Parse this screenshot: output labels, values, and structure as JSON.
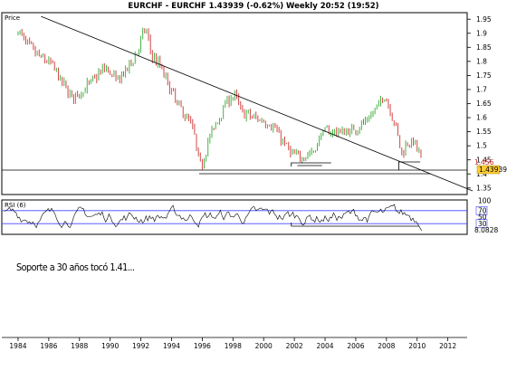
{
  "chart_data": {
    "type": "candlestick",
    "title": "EURCHF - EURCHF    1.43939 (-0.62%)    Weekly  20:52 (19:52)",
    "price_panel": {
      "label": "Price",
      "y_ticks": [
        "1.95",
        "1.9",
        "1.85",
        "1.8",
        "1.75",
        "1.7",
        "1.65",
        "1.6",
        "1.55",
        "1.5",
        "1.45",
        "1.4",
        "1.35"
      ],
      "ylim": [
        1.33,
        1.97
      ],
      "last_price_label": "1.43939",
      "previous_label": "1.456",
      "series": [
        {
          "x": 1984.0,
          "y": 1.91
        },
        {
          "x": 1984.6,
          "y": 1.86
        },
        {
          "x": 1985.3,
          "y": 1.82
        },
        {
          "x": 1986.2,
          "y": 1.79
        },
        {
          "x": 1986.9,
          "y": 1.72
        },
        {
          "x": 1987.6,
          "y": 1.67
        },
        {
          "x": 1988.3,
          "y": 1.7
        },
        {
          "x": 1989.0,
          "y": 1.74
        },
        {
          "x": 1989.7,
          "y": 1.78
        },
        {
          "x": 1990.4,
          "y": 1.73
        },
        {
          "x": 1991.1,
          "y": 1.77
        },
        {
          "x": 1991.8,
          "y": 1.84
        },
        {
          "x": 1992.3,
          "y": 1.92
        },
        {
          "x": 1992.7,
          "y": 1.82
        },
        {
          "x": 1993.3,
          "y": 1.78
        },
        {
          "x": 1994.0,
          "y": 1.69
        },
        {
          "x": 1994.7,
          "y": 1.62
        },
        {
          "x": 1995.3,
          "y": 1.58
        },
        {
          "x": 1995.9,
          "y": 1.42
        },
        {
          "x": 1996.4,
          "y": 1.52
        },
        {
          "x": 1997.0,
          "y": 1.59
        },
        {
          "x": 1997.6,
          "y": 1.66
        },
        {
          "x": 1998.1,
          "y": 1.68
        },
        {
          "x": 1998.6,
          "y": 1.62
        },
        {
          "x": 1999.3,
          "y": 1.6
        },
        {
          "x": 2000.0,
          "y": 1.59
        },
        {
          "x": 2000.6,
          "y": 1.57
        },
        {
          "x": 2001.2,
          "y": 1.52
        },
        {
          "x": 2001.8,
          "y": 1.47
        },
        {
          "x": 2002.3,
          "y": 1.46
        },
        {
          "x": 2002.8,
          "y": 1.47
        },
        {
          "x": 2003.3,
          "y": 1.48
        },
        {
          "x": 2003.8,
          "y": 1.55
        },
        {
          "x": 2004.4,
          "y": 1.55
        },
        {
          "x": 2005.0,
          "y": 1.55
        },
        {
          "x": 2005.6,
          "y": 1.55
        },
        {
          "x": 2006.2,
          "y": 1.57
        },
        {
          "x": 2006.8,
          "y": 1.59
        },
        {
          "x": 2007.4,
          "y": 1.64
        },
        {
          "x": 2007.9,
          "y": 1.68
        },
        {
          "x": 2008.3,
          "y": 1.62
        },
        {
          "x": 2008.7,
          "y": 1.55
        },
        {
          "x": 2009.0,
          "y": 1.47
        },
        {
          "x": 2009.4,
          "y": 1.52
        },
        {
          "x": 2009.8,
          "y": 1.51
        },
        {
          "x": 2010.1,
          "y": 1.48
        },
        {
          "x": 2010.3,
          "y": 1.44
        }
      ]
    },
    "rsi_panel": {
      "label": "RSI (6)",
      "y_ticks": [
        "100",
        "70",
        "50",
        "30",
        "0"
      ],
      "overbought": 70,
      "oversold": 30,
      "ylim": [
        0,
        100
      ],
      "last_value_label": "8.0828"
    },
    "x_axis": {
      "type": "date",
      "ticks": [
        "1984",
        "1986",
        "1988",
        "1990",
        "1992",
        "1994",
        "1996",
        "1998",
        "2000",
        "2002",
        "2004",
        "2006",
        "2008",
        "2010",
        "2012"
      ],
      "xlim": [
        1983.0,
        2013.2
      ]
    },
    "annotations": {
      "support_level": 1.41,
      "trendline": [
        {
          "x": 1985.5,
          "y": 1.96
        },
        {
          "x": 2013.0,
          "y": 1.36
        }
      ]
    },
    "grid": false,
    "colors": {
      "up": "#33aa33",
      "down": "#cc3333",
      "rsi_line": "#000000",
      "rsi_levels": "#4444ff",
      "last_price_bg": "#ffcc33"
    }
  },
  "note": "Soporte a 30 años tocó 1.41..."
}
